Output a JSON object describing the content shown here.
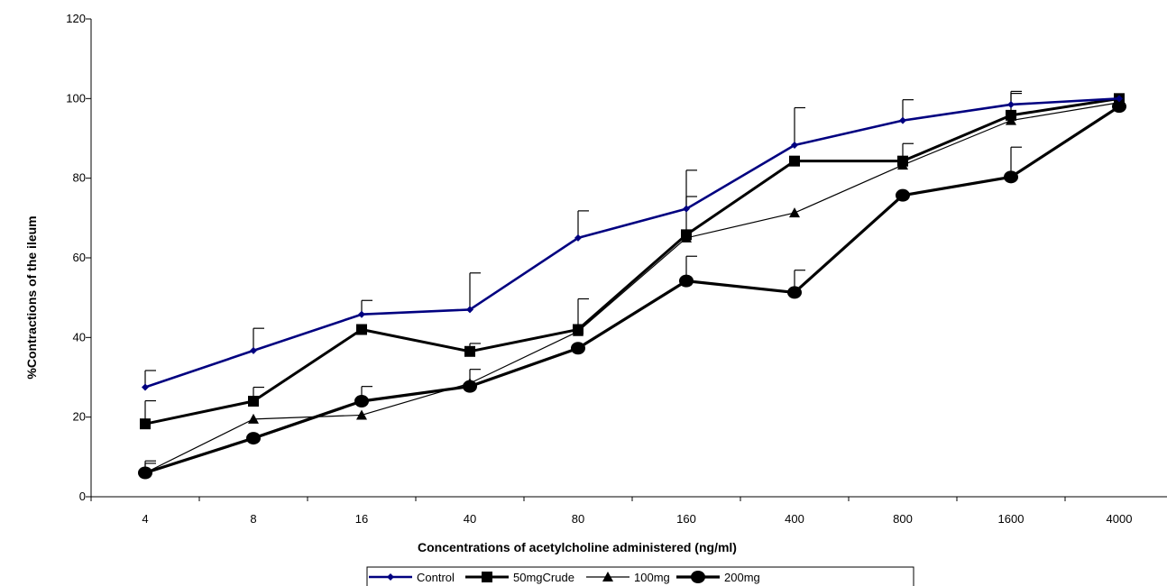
{
  "chart_data": {
    "type": "line",
    "title": "",
    "xlabel": "Concentrations of acetylcholine administered (ng/ml)",
    "ylabel": "%Contractions of the ileum",
    "categories": [
      "4",
      "8",
      "16",
      "40",
      "80",
      "160",
      "400",
      "800",
      "1600",
      "4000"
    ],
    "ylim": [
      0,
      120
    ],
    "yticks": [
      "0",
      "20",
      "40",
      "60",
      "80",
      "100",
      "120"
    ],
    "grid": false,
    "legend_position": "bottom",
    "series": [
      {
        "name": "Control",
        "color": "#000080",
        "marker": "diamond",
        "values": [
          27.5,
          36.7,
          45.8,
          47.0,
          65.0,
          72.3,
          88.3,
          94.5,
          98.5,
          100.0
        ],
        "error_bars": [
          4.2,
          5.6,
          3.5,
          9.2,
          6.8,
          9.7,
          9.4,
          5.2,
          3.3,
          0
        ]
      },
      {
        "name": "50mgCrude",
        "color": "#000000",
        "marker": "square",
        "values": [
          18.3,
          24.0,
          42.0,
          36.5,
          42.0,
          65.8,
          84.3,
          84.3,
          95.8,
          100.0
        ],
        "error_bars": [
          5.8,
          3.5,
          0,
          2.0,
          7.7,
          9.6,
          0,
          4.4,
          5.5,
          0
        ]
      },
      {
        "name": "100mg",
        "color": "#000000",
        "marker": "triangle",
        "values": [
          6.0,
          19.5,
          20.5,
          28.5,
          41.5,
          65.0,
          71.3,
          83.3,
          94.5,
          99.0
        ],
        "error_bars": [
          3.0,
          0,
          0,
          0,
          0,
          0,
          0,
          0,
          0,
          0
        ]
      },
      {
        "name": "200mg",
        "color": "#000000",
        "marker": "circle",
        "values": [
          6.0,
          14.7,
          24.0,
          27.7,
          37.3,
          54.2,
          51.3,
          75.7,
          80.3,
          98.0
        ],
        "error_bars": [
          2.4,
          0,
          3.7,
          4.3,
          0,
          6.2,
          5.6,
          0,
          7.5,
          0
        ]
      }
    ]
  }
}
